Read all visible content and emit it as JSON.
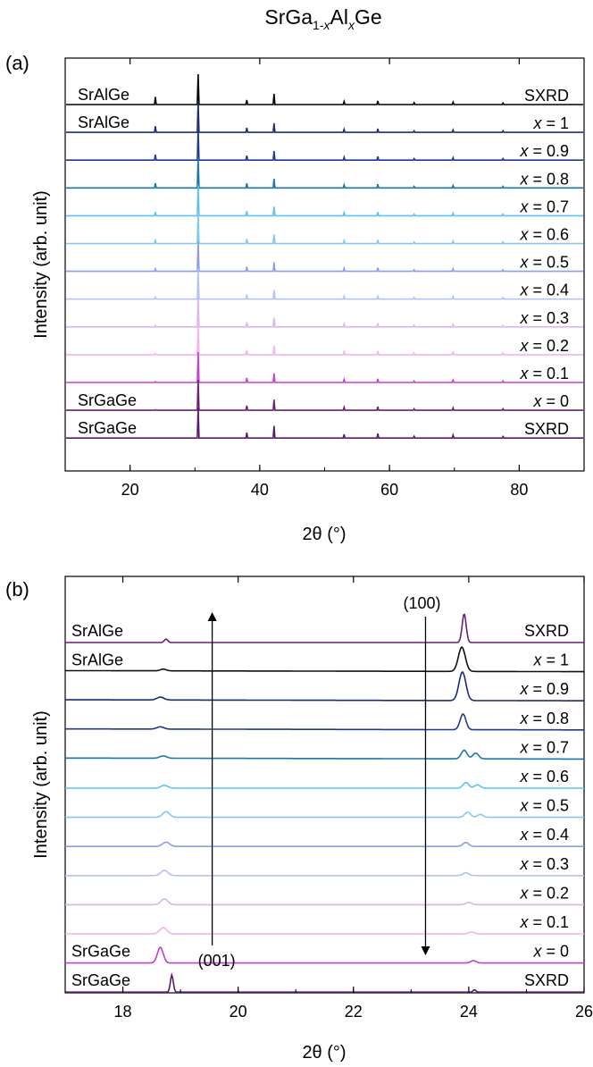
{
  "figure_title": {
    "main": "SrGa",
    "sub1": "1-",
    "x1": "x",
    "mid": "Al",
    "x2": "x",
    "end": "Ge"
  },
  "chart_data": [
    {
      "panel_label": "(a)",
      "type": "line",
      "xlabel": "2θ (°)",
      "ylabel": "Intensity (arb. unit)",
      "xlim": [
        10,
        90
      ],
      "xticks": [
        20,
        40,
        60,
        80
      ],
      "grid": false,
      "peak_positions": [
        23.9,
        30.5,
        38.0,
        42.2,
        53.0,
        58.2,
        63.8,
        69.8,
        77.5
      ],
      "series": [
        {
          "name": "SrAlGe SXRD",
          "label_left": "SrAlGe",
          "label_right": "SXRD",
          "color": "#000000",
          "peaks": [
            0.25,
            1.0,
            0.15,
            0.35,
            0.1,
            0.12,
            0.06,
            0.08,
            0.05
          ]
        },
        {
          "name": "x = 1",
          "label_left": "SrAlGe",
          "label_right": "x = 1",
          "color": "#1f2c72",
          "peaks": [
            0.2,
            1.0,
            0.15,
            0.3,
            0.1,
            0.12,
            0.05,
            0.08,
            0.05
          ]
        },
        {
          "name": "x = 0.9",
          "label_left": "",
          "label_right": "x = 0.9",
          "color": "#1e3a8f",
          "peaks": [
            0.18,
            1.0,
            0.15,
            0.3,
            0.1,
            0.12,
            0.05,
            0.08,
            0.05
          ]
        },
        {
          "name": "x = 0.8",
          "label_left": "",
          "label_right": "x = 0.8",
          "color": "#1877a8",
          "peaks": [
            0.15,
            1.0,
            0.15,
            0.3,
            0.1,
            0.12,
            0.05,
            0.08,
            0.05
          ]
        },
        {
          "name": "x = 0.7",
          "label_left": "",
          "label_right": "x = 0.7",
          "color": "#5ec3ec",
          "peaks": [
            0.12,
            1.0,
            0.15,
            0.3,
            0.1,
            0.12,
            0.05,
            0.08,
            0.05
          ]
        },
        {
          "name": "x = 0.6",
          "label_left": "",
          "label_right": "x = 0.6",
          "color": "#7fc8ee",
          "peaks": [
            0.1,
            1.0,
            0.15,
            0.3,
            0.1,
            0.12,
            0.05,
            0.08,
            0.05
          ]
        },
        {
          "name": "x = 0.5",
          "label_left": "",
          "label_right": "x = 0.5",
          "color": "#8e9de6",
          "peaks": [
            0.08,
            1.0,
            0.15,
            0.3,
            0.1,
            0.12,
            0.05,
            0.08,
            0.05
          ]
        },
        {
          "name": "x = 0.4",
          "label_left": "",
          "label_right": "x = 0.4",
          "color": "#b9c1f2",
          "peaks": [
            0.06,
            1.0,
            0.15,
            0.3,
            0.1,
            0.12,
            0.05,
            0.08,
            0.05
          ]
        },
        {
          "name": "x = 0.3",
          "label_left": "",
          "label_right": "x = 0.3",
          "color": "#d9b8ef",
          "peaks": [
            0.05,
            1.0,
            0.15,
            0.3,
            0.1,
            0.12,
            0.05,
            0.08,
            0.05
          ]
        },
        {
          "name": "x = 0.2",
          "label_left": "",
          "label_right": "x = 0.2",
          "color": "#f3b3ee",
          "peaks": [
            0.04,
            1.0,
            0.15,
            0.3,
            0.1,
            0.12,
            0.05,
            0.08,
            0.05
          ]
        },
        {
          "name": "x = 0.1",
          "label_left": "",
          "label_right": "x = 0.1",
          "color": "#c93fd6",
          "peaks": [
            0.03,
            1.0,
            0.15,
            0.3,
            0.1,
            0.12,
            0.05,
            0.08,
            0.05
          ]
        },
        {
          "name": "x = 0",
          "label_left": "SrGaGe",
          "label_right": "x = 0",
          "color": "#6d1f74",
          "peaks": [
            0.02,
            1.0,
            0.15,
            0.35,
            0.1,
            0.12,
            0.05,
            0.08,
            0.05
          ]
        },
        {
          "name": "SrGaGe SXRD",
          "label_left": "SrGaGe",
          "label_right": "SXRD",
          "color": "#5a1a6b",
          "peaks": [
            0.0,
            1.0,
            0.18,
            0.4,
            0.12,
            0.15,
            0.06,
            0.1,
            0.05
          ]
        }
      ]
    },
    {
      "panel_label": "(b)",
      "type": "line",
      "xlabel": "2θ (°)",
      "ylabel": "Intensity (arb. unit)",
      "xlim": [
        17,
        26
      ],
      "xticks": [
        18,
        20,
        22,
        24,
        26
      ],
      "grid": false,
      "annotations": [
        {
          "text": "(001)",
          "x": 19.55,
          "arrow": "up"
        },
        {
          "text": "(100)",
          "x": 23.25,
          "arrow": "down"
        }
      ],
      "series": [
        {
          "name": "SrAlGe SXRD",
          "label_left": "SrAlGe",
          "label_right": "SXRD",
          "color": "#6a1f7a",
          "p001": {
            "pos": 18.75,
            "h": 0.12,
            "w": 0.03
          },
          "p100": {
            "pos": 23.92,
            "h": 1.0,
            "w": 0.035
          }
        },
        {
          "name": "x = 1",
          "label_left": "SrAlGe",
          "label_right": "x = 1",
          "color": "#111111",
          "p001": {
            "pos": 18.7,
            "h": 0.06,
            "w": 0.05
          },
          "p100": {
            "pos": 23.88,
            "h": 0.85,
            "w": 0.06
          }
        },
        {
          "name": "x = 0.9",
          "label_left": "",
          "label_right": "x = 0.9",
          "color": "#1c2c70",
          "p001": {
            "pos": 18.65,
            "h": 0.1,
            "w": 0.06
          },
          "p100": {
            "pos": 23.89,
            "h": 1.0,
            "w": 0.06
          }
        },
        {
          "name": "x = 0.8",
          "label_left": "",
          "label_right": "x = 0.8",
          "color": "#1e3a8f",
          "p001": {
            "pos": 18.65,
            "h": 0.08,
            "w": 0.06
          },
          "p100": {
            "pos": 23.9,
            "h": 0.55,
            "w": 0.05
          }
        },
        {
          "name": "x = 0.7",
          "label_left": "",
          "label_right": "x = 0.7",
          "color": "#1878a6",
          "p001": {
            "pos": 18.7,
            "h": 0.08,
            "w": 0.06
          },
          "p100": {
            "pos": 23.92,
            "h": 0.3,
            "w": 0.05
          },
          "p100b": {
            "pos": 24.12,
            "h": 0.2,
            "w": 0.05
          }
        },
        {
          "name": "x = 0.6",
          "label_left": "",
          "label_right": "x = 0.6",
          "color": "#5cc3ec",
          "p001": {
            "pos": 18.72,
            "h": 0.1,
            "w": 0.06
          },
          "p100": {
            "pos": 23.95,
            "h": 0.2,
            "w": 0.05
          },
          "p100b": {
            "pos": 24.15,
            "h": 0.12,
            "w": 0.05
          }
        },
        {
          "name": "x = 0.5",
          "label_left": "",
          "label_right": "x = 0.5",
          "color": "#83c9ef",
          "p001": {
            "pos": 18.75,
            "h": 0.2,
            "w": 0.06
          },
          "p100": {
            "pos": 23.98,
            "h": 0.18,
            "w": 0.05
          },
          "p100b": {
            "pos": 24.2,
            "h": 0.1,
            "w": 0.05
          }
        },
        {
          "name": "x = 0.4",
          "label_left": "",
          "label_right": "x = 0.4",
          "color": "#8d9ce6",
          "p001": {
            "pos": 18.75,
            "h": 0.15,
            "w": 0.06
          },
          "p100": {
            "pos": 23.95,
            "h": 0.14,
            "w": 0.05
          }
        },
        {
          "name": "x = 0.3",
          "label_left": "",
          "label_right": "x = 0.3",
          "color": "#b7c0f2",
          "p001": {
            "pos": 18.72,
            "h": 0.18,
            "w": 0.06
          },
          "p100": {
            "pos": 23.95,
            "h": 0.1,
            "w": 0.05
          }
        },
        {
          "name": "x = 0.2",
          "label_left": "",
          "label_right": "x = 0.2",
          "color": "#d7b5ee",
          "p001": {
            "pos": 18.72,
            "h": 0.2,
            "w": 0.06
          },
          "p100": {
            "pos": 24.0,
            "h": 0.08,
            "w": 0.05
          }
        },
        {
          "name": "x = 0.1",
          "label_left": "",
          "label_right": "x = 0.1",
          "color": "#f2b0ef",
          "p001": {
            "pos": 18.7,
            "h": 0.22,
            "w": 0.06
          },
          "p100": {
            "pos": 24.05,
            "h": 0.06,
            "w": 0.05
          }
        },
        {
          "name": "x = 0",
          "label_left": "SrGaGe",
          "label_right": "x = 0",
          "color": "#c23cd0",
          "p001": {
            "pos": 18.65,
            "h": 0.55,
            "w": 0.05
          },
          "p100": {
            "pos": 24.08,
            "h": 0.08,
            "w": 0.05
          }
        },
        {
          "name": "SrGaGe SXRD",
          "label_left": "SrGaGe",
          "label_right": "SXRD",
          "color": "#5a1a6b",
          "p001": {
            "pos": 18.85,
            "h": 0.6,
            "w": 0.025
          },
          "p100": {
            "pos": 24.1,
            "h": 0.08,
            "w": 0.025
          }
        }
      ]
    }
  ]
}
